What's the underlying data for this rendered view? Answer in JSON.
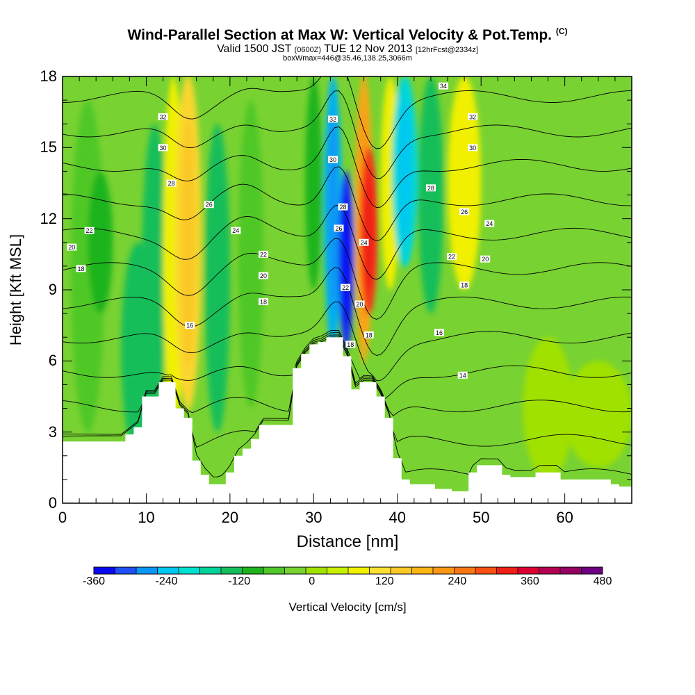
{
  "header": {
    "title": "Wind-Parallel Section at Max W: Vertical Velocity & Pot.Temp.",
    "title_mark": "(C)",
    "valid_prefix": "Valid 1500 JST",
    "valid_z": "(0600Z)",
    "valid_date": "TUE 12 Nov 2013",
    "forecast": "[12hrFcst@2334z]",
    "box_info": "boxWmax=446@35.46,138.25,3066m"
  },
  "chart_data": {
    "type": "heatmap",
    "xlabel": "Distance [nm]",
    "ylabel": "Height [Kft MSL]",
    "xlim": [
      0,
      68
    ],
    "ylim": [
      0,
      18
    ],
    "x_ticks": [
      "0",
      "10",
      "20",
      "30",
      "40",
      "50",
      "60"
    ],
    "y_ticks": [
      "0",
      "3",
      "6",
      "9",
      "12",
      "15",
      "18"
    ],
    "colorbar": {
      "label": "Vertical Velocity [cm/s]",
      "min": -360,
      "max": 480,
      "step": 40,
      "tick_labels": [
        "-360",
        "-240",
        "-120",
        "0",
        "120",
        "240",
        "360",
        "480"
      ],
      "colors": [
        "#0a0af0",
        "#1e50f5",
        "#0a96f5",
        "#00c8f0",
        "#00e0d0",
        "#00d29b",
        "#14be5a",
        "#1eb41e",
        "#50c828",
        "#78d232",
        "#a0e100",
        "#c8f000",
        "#f0f000",
        "#fae132",
        "#fac828",
        "#fab414",
        "#fa9614",
        "#fa7814",
        "#fa5014",
        "#f01e14",
        "#dc0032",
        "#b40050",
        "#960064",
        "#6e0082"
      ]
    },
    "w_field": {
      "background": 10,
      "cells": [
        {
          "x": [
            1,
            5
          ],
          "z": [
            3,
            17
          ],
          "w": -25
        },
        {
          "x": [
            3,
            6
          ],
          "z": [
            8,
            14
          ],
          "w": -60
        },
        {
          "x": [
            7,
            11
          ],
          "z": [
            2,
            11
          ],
          "w": -100
        },
        {
          "x": [
            9.5,
            12.5
          ],
          "z": [
            4,
            16
          ],
          "w": -90
        },
        {
          "x": [
            12,
            14.5
          ],
          "z": [
            3,
            18
          ],
          "w": 120
        },
        {
          "x": [
            13.5,
            16.5
          ],
          "z": [
            4,
            18
          ],
          "w": 230
        },
        {
          "x": [
            17,
            20
          ],
          "z": [
            3,
            16
          ],
          "w": -120
        },
        {
          "x": [
            21,
            24
          ],
          "z": [
            4,
            17
          ],
          "w": -30
        },
        {
          "x": [
            29,
            31
          ],
          "z": [
            9,
            18
          ],
          "w": -70
        },
        {
          "x": [
            31.3,
            33.3
          ],
          "z": [
            6.5,
            18
          ],
          "w": -260
        },
        {
          "x": [
            33,
            34.8
          ],
          "z": [
            6.5,
            14
          ],
          "w": -360
        },
        {
          "x": [
            35,
            37
          ],
          "z": [
            6,
            18
          ],
          "w": 300
        },
        {
          "x": [
            35.6,
            37.6
          ],
          "z": [
            8,
            15
          ],
          "w": 420
        },
        {
          "x": [
            38,
            40.3
          ],
          "z": [
            9,
            18
          ],
          "w": 120
        },
        {
          "x": [
            39.5,
            42.3
          ],
          "z": [
            10,
            18
          ],
          "w": -240
        },
        {
          "x": [
            42.5,
            45.5
          ],
          "z": [
            8,
            18
          ],
          "w": -90
        },
        {
          "x": [
            46,
            50
          ],
          "z": [
            9,
            18
          ],
          "w": 120
        },
        {
          "x": [
            50.5,
            54
          ],
          "z": [
            3,
            13
          ],
          "w": 25
        },
        {
          "x": [
            55,
            61
          ],
          "z": [
            1,
            7
          ],
          "w": 45
        },
        {
          "x": [
            60,
            68
          ],
          "z": [
            1.5,
            6
          ],
          "w": 40
        }
      ]
    },
    "terrain": {
      "x": [
        0,
        1,
        2,
        3,
        4,
        5,
        6,
        7,
        8,
        9,
        10,
        11,
        12,
        13,
        14,
        15,
        16,
        17,
        18,
        19,
        20,
        21,
        22,
        23,
        24,
        25,
        26,
        27,
        28,
        29,
        30,
        31,
        32,
        33,
        34,
        35,
        36,
        37,
        38,
        39,
        40,
        41,
        42,
        43,
        44,
        45,
        46,
        47,
        48,
        49,
        50,
        51,
        52,
        53,
        54,
        55,
        56,
        57,
        58,
        59,
        60,
        61,
        62,
        63,
        64,
        65,
        66,
        67,
        68
      ],
      "z": [
        2.6,
        2.6,
        2.6,
        2.6,
        2.6,
        2.6,
        2.6,
        2.6,
        2.9,
        3.2,
        4.5,
        4.5,
        5.1,
        5.1,
        4.0,
        3.6,
        1.8,
        1.2,
        0.8,
        0.8,
        1.3,
        2.0,
        2.3,
        2.7,
        3.3,
        3.3,
        3.3,
        3.3,
        5.7,
        6.3,
        6.7,
        6.8,
        7.0,
        7.0,
        6.2,
        4.8,
        5.1,
        5.1,
        4.5,
        3.6,
        1.9,
        1.0,
        0.8,
        0.8,
        0.8,
        0.6,
        0.6,
        0.5,
        0.5,
        1.3,
        1.6,
        1.6,
        1.6,
        1.2,
        1.1,
        1.1,
        1.1,
        1.3,
        1.3,
        1.3,
        1.0,
        1.0,
        1.0,
        1.0,
        1.0,
        1.0,
        0.8,
        0.7,
        0.7
      ]
    },
    "theta_contour_levels": [
      12,
      14,
      16,
      18,
      20,
      22,
      24,
      26,
      28,
      30,
      32,
      34
    ],
    "contour_labels": [
      {
        "text": "32",
        "x": 12,
        "z": 16.3
      },
      {
        "text": "30",
        "x": 12,
        "z": 15.0
      },
      {
        "text": "28",
        "x": 13,
        "z": 13.5
      },
      {
        "text": "26",
        "x": 17.5,
        "z": 12.6
      },
      {
        "text": "22",
        "x": 3.2,
        "z": 11.5
      },
      {
        "text": "20",
        "x": 1.1,
        "z": 10.8
      },
      {
        "text": "18",
        "x": 2.2,
        "z": 9.9
      },
      {
        "text": "24",
        "x": 20.7,
        "z": 11.5
      },
      {
        "text": "22",
        "x": 24.0,
        "z": 10.5
      },
      {
        "text": "20",
        "x": 24.0,
        "z": 9.6
      },
      {
        "text": "18",
        "x": 24.0,
        "z": 8.5
      },
      {
        "text": "16",
        "x": 15.2,
        "z": 7.5
      },
      {
        "text": "32",
        "x": 32.3,
        "z": 16.2
      },
      {
        "text": "30",
        "x": 32.3,
        "z": 14.5
      },
      {
        "text": "28",
        "x": 33.5,
        "z": 12.5
      },
      {
        "text": "26",
        "x": 33.0,
        "z": 11.6
      },
      {
        "text": "24",
        "x": 36.0,
        "z": 11.0
      },
      {
        "text": "22",
        "x": 33.8,
        "z": 9.1
      },
      {
        "text": "20",
        "x": 35.5,
        "z": 8.4
      },
      {
        "text": "18",
        "x": 34.4,
        "z": 6.7
      },
      {
        "text": "18",
        "x": 36.6,
        "z": 7.1
      },
      {
        "text": "34",
        "x": 45.5,
        "z": 17.6
      },
      {
        "text": "32",
        "x": 49.0,
        "z": 16.3
      },
      {
        "text": "30",
        "x": 49.0,
        "z": 15.0
      },
      {
        "text": "28",
        "x": 44.0,
        "z": 13.3
      },
      {
        "text": "26",
        "x": 48.0,
        "z": 12.3
      },
      {
        "text": "24",
        "x": 51.0,
        "z": 11.8
      },
      {
        "text": "22",
        "x": 46.5,
        "z": 10.4
      },
      {
        "text": "20",
        "x": 50.5,
        "z": 10.3
      },
      {
        "text": "18",
        "x": 48.0,
        "z": 9.2
      },
      {
        "text": "16",
        "x": 45.0,
        "z": 7.2
      },
      {
        "text": "14",
        "x": 47.8,
        "z": 5.4
      }
    ]
  }
}
